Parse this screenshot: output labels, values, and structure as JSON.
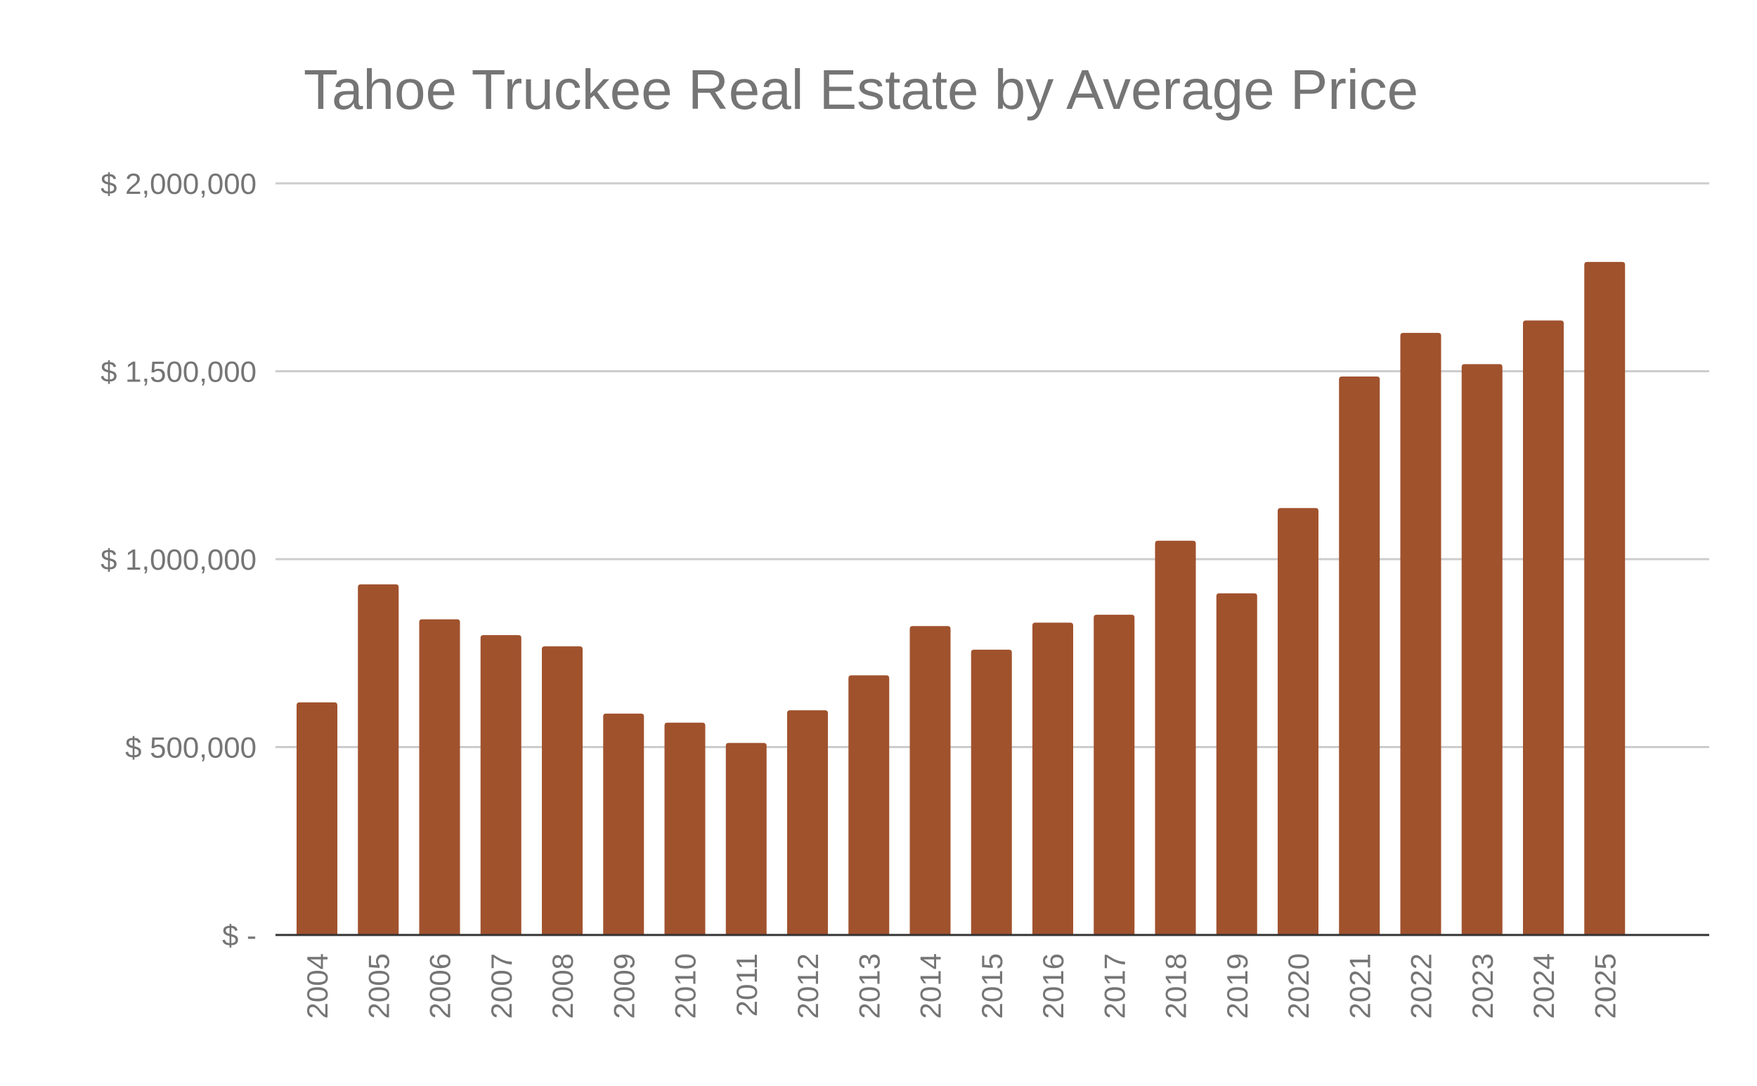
{
  "chart_data": {
    "type": "bar",
    "title": "Tahoe Truckee Real Estate by Average Price",
    "xlabel": "",
    "ylabel": "",
    "categories": [
      "2004",
      "2005",
      "2006",
      "2007",
      "2008",
      "2009",
      "2010",
      "2011",
      "2012",
      "2013",
      "2014",
      "2015",
      "2016",
      "2017",
      "2018",
      "2019",
      "2020",
      "2021",
      "2022",
      "2023",
      "2024",
      "2025"
    ],
    "values": [
      619000,
      933000,
      840000,
      798000,
      768000,
      589000,
      565000,
      511000,
      598000,
      691000,
      822000,
      759000,
      831000,
      852000,
      1049000,
      909000,
      1136000,
      1486000,
      1602000,
      1519000,
      1635000,
      1791000
    ],
    "ylim": [
      0,
      2000000
    ],
    "yticks": [
      0,
      500000,
      1000000,
      1500000,
      2000000
    ],
    "ytick_labels": [
      "$ -",
      "$ 500,000",
      "$ 1,000,000",
      "$ 1,500,000",
      "$ 2,000,000"
    ],
    "grid": true,
    "legend": "none",
    "colors": {
      "bar": "#A0522D",
      "grid": "#CCCCCC",
      "axis": "#333333",
      "text": "#757575"
    }
  }
}
